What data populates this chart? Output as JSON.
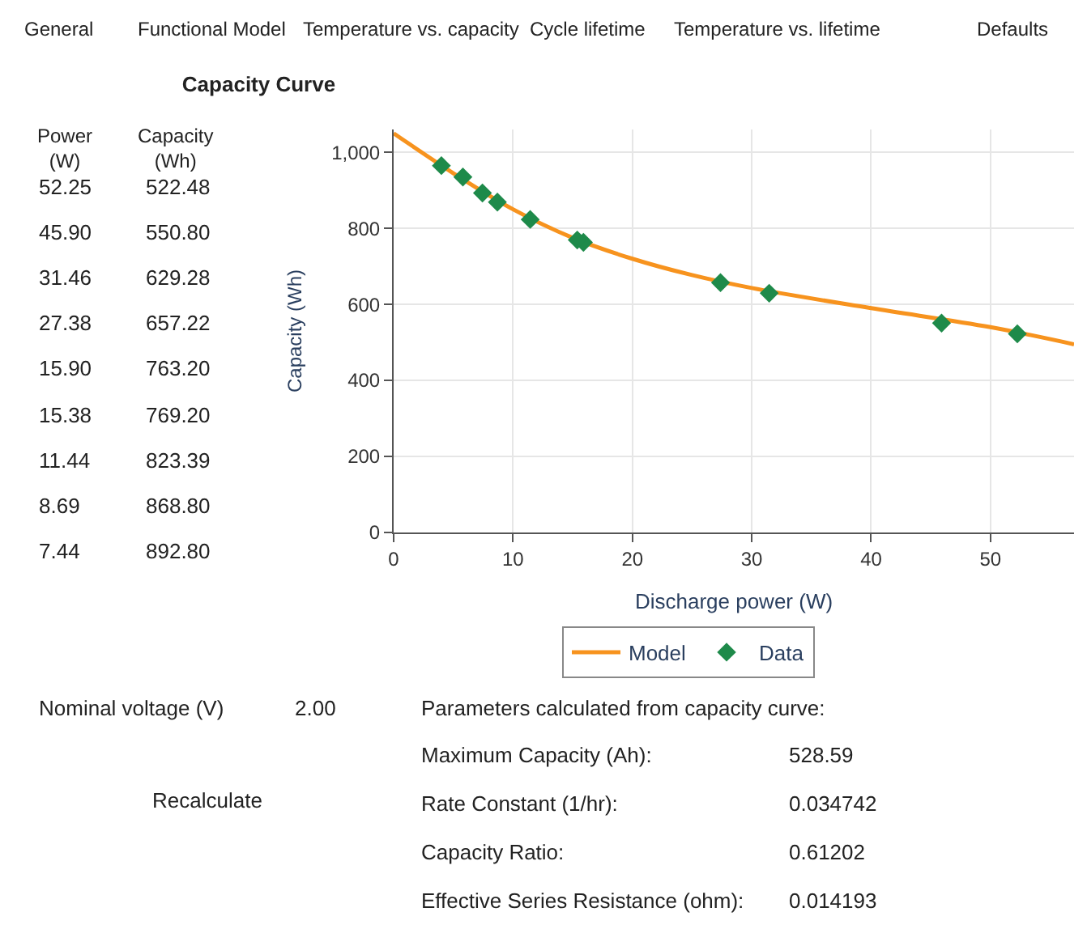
{
  "chart_data": {
    "type": "scatter",
    "title": "Capacity Curve",
    "xlabel": "Discharge power (W)",
    "ylabel": "Capacity (Wh)",
    "xlim": [
      0,
      57
    ],
    "xticks": [
      0,
      10,
      20,
      30,
      40,
      50
    ],
    "ylim": [
      0,
      1060
    ],
    "yticks": [
      0,
      200,
      400,
      600,
      {
        "value": 800,
        "label": "800"
      },
      {
        "value": 1000,
        "label": "1,000"
      }
    ],
    "grid": true,
    "legend": "bottom",
    "marker": "diamond",
    "series": [
      {
        "name": "Model",
        "type": "line",
        "marker": "none",
        "color": "#f7931e",
        "x": [
          0,
          5,
          10,
          15,
          20,
          25,
          30,
          40,
          50,
          57
        ],
        "values": [
          1050,
          945,
          850,
          775,
          720,
          677,
          643,
          590,
          540,
          495
        ]
      },
      {
        "name": "Data",
        "color": "#1e8a4a",
        "x": [
          52.25,
          45.9,
          31.46,
          27.38,
          15.9,
          15.38,
          11.44,
          8.69,
          7.44,
          5.8,
          4
        ],
        "values": [
          522.48,
          550.8,
          629.28,
          657.22,
          763.2,
          769.2,
          823.39,
          868.8,
          892.8,
          935,
          965
        ]
      }
    ],
    "annotations": [
      "General",
      "Functional Model",
      "Temperature vs. capacity",
      "Cycle lifetime",
      "Temperature vs. lifetime",
      "Defaults",
      "Power\n(W)",
      "Capacity\n(Wh)",
      "52.25",
      "522.48",
      "45.90",
      "550.80",
      "31.46",
      "629.28",
      "27.38",
      "657.22",
      "15.90",
      "763.20",
      "15.38",
      "769.20",
      "11.44",
      "823.39",
      "8.69",
      "868.80",
      "7.44",
      "892.80",
      "Nominal voltage (V)",
      "2.00",
      "Parameters calculated from capacity curve:",
      "Recalculate",
      "Maximum Capacity (Ah):",
      "528.59",
      "Rate Constant (1/hr):",
      "0.034742",
      "Capacity Ratio:",
      "0.61202",
      "Effective Series Resistance (ohm):",
      "0.014193"
    ]
  }
}
